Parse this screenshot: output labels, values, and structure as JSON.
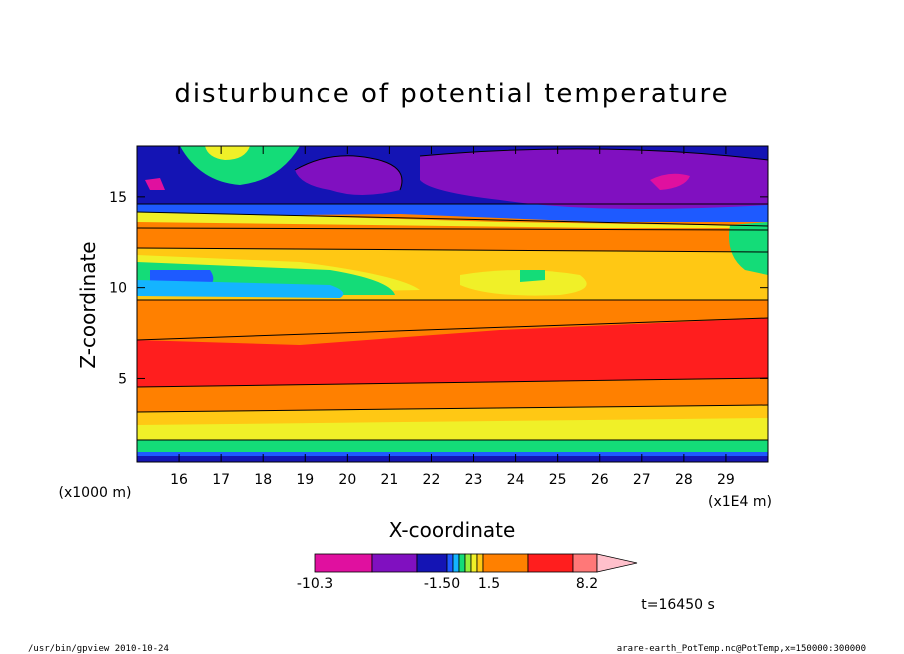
{
  "chart_data": {
    "type": "heatmap",
    "title": "disturbunce of potential temperature",
    "xlabel": "X-coordinate",
    "ylabel": "Z-coordinate",
    "x_unit_label": "(x1E4 m)",
    "y_unit_label": "(x1000 m)",
    "x_ticks": [
      "16",
      "17",
      "18",
      "19",
      "20",
      "21",
      "22",
      "23",
      "24",
      "25",
      "26",
      "27",
      "28",
      "29"
    ],
    "y_ticks": [
      "5",
      "10",
      "15"
    ],
    "xlim": [
      15,
      30
    ],
    "ylim": [
      0.4,
      17.8
    ],
    "grid": false,
    "colorbar": {
      "tick_labels": [
        "-10.3",
        "-1.50",
        "1.5",
        "8.2"
      ],
      "colors": [
        "#e0109f",
        "#8010c0",
        "#1414b4",
        "#1e5aff",
        "#14b4ff",
        "#14dc78",
        "#96f03c",
        "#f0f028",
        "#ffc814",
        "#ff8000",
        "#ff1e1e",
        "#ff7878",
        "#ffc0cb"
      ]
    },
    "bands_description": [
      {
        "z_range": [
          0.4,
          1.2
        ],
        "category": "cold (purple/blue)"
      },
      {
        "z_range": [
          1.2,
          2.5
        ],
        "category": "weak (green/yellow)"
      },
      {
        "z_range": [
          2.5,
          5.0
        ],
        "category": "warm (orange)"
      },
      {
        "z_range": [
          5.0,
          7.3
        ],
        "category": "warmest (red)"
      },
      {
        "z_range": [
          7.3,
          9.5
        ],
        "category": "warm (orange)"
      },
      {
        "z_range": [
          9.5,
          12.5
        ],
        "category": "weak (yellow/green/cyan)"
      },
      {
        "z_range": [
          12.5,
          14.0
        ],
        "category": "warm (orange)"
      },
      {
        "z_range": [
          14.0,
          17.8
        ],
        "category": "cold (blue/purple)"
      }
    ],
    "time_label": "t=16450 s"
  },
  "footer": {
    "left": "/usr/bin/gpview  2010-10-24",
    "right": "arare-earth_PotTemp.nc@PotTemp,x=150000:300000"
  }
}
